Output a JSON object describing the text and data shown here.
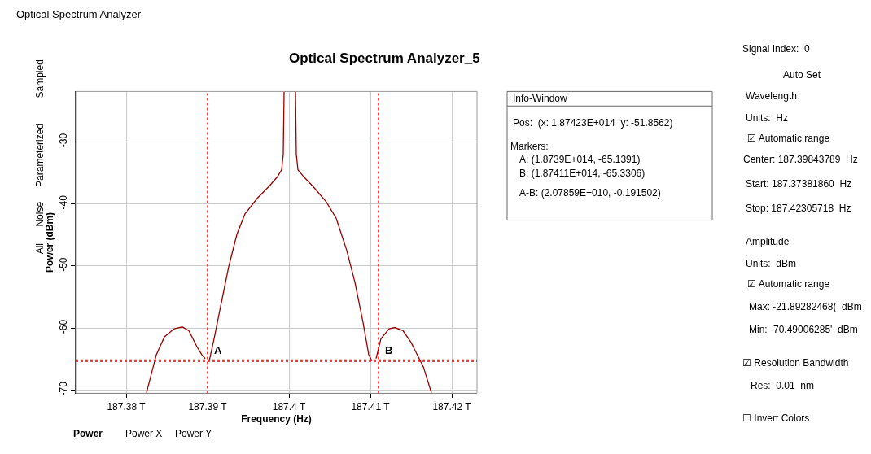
{
  "chart_data": [
    {
      "type": "line",
      "title": "Optical Spectrum Analyzer_5",
      "xlabel": "Frequency (Hz)",
      "ylabel": "Power (dBm)",
      "x": [
        187.3825,
        187.3837,
        187.3847,
        187.3859,
        187.3869,
        187.3877,
        187.3887,
        187.3893,
        187.3897,
        187.3899,
        187.3902,
        187.3908,
        187.3916,
        187.3926,
        187.3936,
        187.3946,
        187.3961,
        187.3976,
        187.3986,
        187.3991,
        187.3993,
        187.3994,
        187.4008,
        187.4009,
        187.4011,
        187.4018,
        187.4031,
        187.4046,
        187.4058,
        187.4071,
        187.4081,
        187.4091,
        187.4098,
        187.4102,
        187.4104,
        187.4107,
        187.4113,
        187.4123,
        187.413,
        187.414,
        187.415,
        187.4165,
        187.4175
      ],
      "series": [
        {
          "color": "#990000",
          "values": [
            -70.4,
            -64.3,
            -61.4,
            -60.1,
            -59.8,
            -60.4,
            -63.0,
            -64.3,
            -64.9,
            null,
            -65.3,
            -61.7,
            -56.5,
            -50.1,
            -44.9,
            -41.6,
            -39.1,
            -37.1,
            -35.6,
            -34.5,
            -32.0,
            -21.9,
            -21.9,
            -32.0,
            -34.5,
            -35.6,
            -37.4,
            -39.7,
            -42.3,
            -47.5,
            -52.6,
            -59.1,
            -64.3,
            -65.3,
            null,
            -64.9,
            -61.7,
            -60.1,
            -59.9,
            -60.4,
            -62.3,
            -66.2,
            -70.4
          ]
        }
      ],
      "xlim": [
        187.3738,
        187.4231
      ],
      "ylim": [
        -70.49,
        -21.89
      ],
      "xticks": [
        {
          "value": 187.38,
          "label": "187.38 T"
        },
        {
          "value": 187.39,
          "label": "187.39 T"
        },
        {
          "value": 187.4,
          "label": "187.4 T"
        },
        {
          "value": 187.41,
          "label": "187.41 T"
        },
        {
          "value": 187.42,
          "label": "187.42 T"
        }
      ],
      "yticks": [
        -70,
        -60,
        -50,
        -40,
        -30
      ],
      "grid": true,
      "marker": "none",
      "line_style": "solid",
      "ref_lines": [
        {
          "axis": "x",
          "value": 187.39,
          "label": "A",
          "color": "#ff0000",
          "line_style": "dotted"
        },
        {
          "axis": "x",
          "value": 187.411,
          "label": "B",
          "color": "#ff0000",
          "line_style": "dotted"
        },
        {
          "axis": "y",
          "value": -65.1391,
          "label": null,
          "color": "#ff0000",
          "line_style": "dotted"
        },
        {
          "axis": "y",
          "value": -65.3306,
          "label": null,
          "color": "#ff0000",
          "line_style": "dotted"
        }
      ],
      "annotations": [
        "Info-Window",
        "Pos:  (x: 1.87423E+014  y: -51.8562)",
        "Markers:",
        "A: (1.8739E+014, -65.1391)",
        "B: (1.87411E+014, -65.3306)",
        "A-B: (2.07859E+010, -0.191502)",
        "Sampled",
        "Parameterized",
        "Noise",
        "All",
        "Power",
        "Power X",
        "Power Y"
      ]
    },
    {
      "type": "other",
      "title": "Optical Spectrum Analyzer",
      "annotations": [
        "Signal Index:  0",
        "Auto Set",
        "Wavelength",
        "Units:  Hz",
        "☑ Automatic range",
        "Center: 187.39843789  Hz",
        "Start: 187.37381860  Hz",
        "Stop: 187.42305718  Hz",
        "Amplitude",
        "Units:  dBm",
        "☑ Automatic range",
        "Max: -21.89282468(  dBm",
        "Min: -70.49006285'  dBm",
        "☑ Resolution Bandwidth",
        "Res:  0.01  nm",
        "☐ Invert Colors"
      ]
    }
  ]
}
